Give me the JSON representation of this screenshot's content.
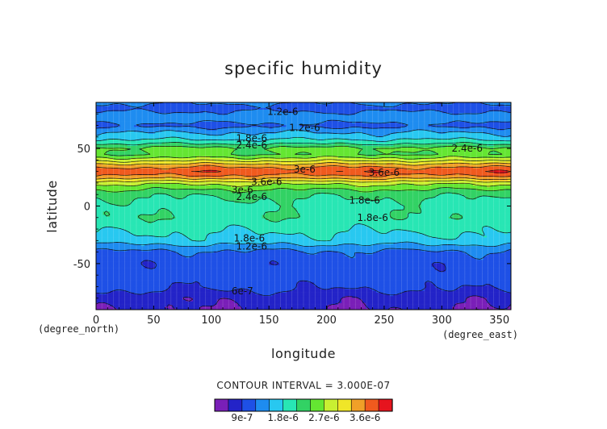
{
  "chart_data": {
    "type": "heatmap",
    "title": "specific humidity",
    "xlabel": "longitude",
    "ylabel": "latitude",
    "x_unit_label": "(degree_east)",
    "y_unit_label": "(degree_north)",
    "xlim": [
      0,
      360
    ],
    "ylim": [
      -90,
      90
    ],
    "x_ticks": [
      0,
      50,
      100,
      150,
      200,
      250,
      300,
      350
    ],
    "y_ticks": [
      -50,
      0,
      50
    ],
    "contour_interval_text": "CONTOUR INTERVAL = 3.000E-07",
    "levels": [
      6e-07,
      9e-07,
      1.2e-06,
      1.5e-06,
      1.8e-06,
      2.1e-06,
      2.4e-06,
      2.7e-06,
      3e-06,
      3.3e-06,
      3.6e-06,
      3.9e-06
    ],
    "colors": [
      "#7a1fb8",
      "#2323c8",
      "#1e50e6",
      "#1e8cf0",
      "#28c8f0",
      "#28e6b4",
      "#32d264",
      "#64e632",
      "#c8f032",
      "#f0e628",
      "#f0a028",
      "#f05a1e",
      "#e6141e"
    ],
    "colorbar_labels": [
      {
        "value": 9e-07,
        "text": "9e-7"
      },
      {
        "value": 1.8e-06,
        "text": "1.8e-6"
      },
      {
        "value": 2.7e-06,
        "text": "2.7e-6"
      },
      {
        "value": 3.6e-06,
        "text": "3.6e-6"
      }
    ],
    "zonal_profile": [
      {
        "lat": -90,
        "q": 6.2e-07
      },
      {
        "lat": -80,
        "q": 6.8e-07
      },
      {
        "lat": -75,
        "q": 8.5e-07
      },
      {
        "lat": -70,
        "q": 9.6e-07
      },
      {
        "lat": -60,
        "q": 1.05e-06
      },
      {
        "lat": -50,
        "q": 1e-06
      },
      {
        "lat": -40,
        "q": 1.15e-06
      },
      {
        "lat": -35,
        "q": 1.4e-06
      },
      {
        "lat": -30,
        "q": 1.7e-06
      },
      {
        "lat": -20,
        "q": 1.85e-06
      },
      {
        "lat": -10,
        "q": 2.05e-06
      },
      {
        "lat": 0,
        "q": 2e-06
      },
      {
        "lat": 10,
        "q": 2.15e-06
      },
      {
        "lat": 15,
        "q": 2.45e-06
      },
      {
        "lat": 20,
        "q": 2.8e-06
      },
      {
        "lat": 25,
        "q": 3.45e-06
      },
      {
        "lat": 30,
        "q": 3.85e-06
      },
      {
        "lat": 35,
        "q": 3.5e-06
      },
      {
        "lat": 40,
        "q": 2.9e-06
      },
      {
        "lat": 45,
        "q": 2.4e-06
      },
      {
        "lat": 50,
        "q": 2.5e-06
      },
      {
        "lat": 55,
        "q": 2e-06
      },
      {
        "lat": 60,
        "q": 1.65e-06
      },
      {
        "lat": 65,
        "q": 1.45e-06
      },
      {
        "lat": 70,
        "q": 1.1e-06
      },
      {
        "lat": 75,
        "q": 1.35e-06
      },
      {
        "lat": 80,
        "q": 1.3e-06
      },
      {
        "lat": 85,
        "q": 1.05e-06
      },
      {
        "lat": 90,
        "q": 1.25e-06
      }
    ],
    "contour_labels": [
      {
        "lon": 162,
        "lat": 82,
        "text": "1.2e-6"
      },
      {
        "lon": 181,
        "lat": 68,
        "text": "1.2e-6"
      },
      {
        "lon": 135,
        "lat": 59,
        "text": "1.8e-6"
      },
      {
        "lon": 135,
        "lat": 53,
        "text": "2.4e-6"
      },
      {
        "lon": 322,
        "lat": 50,
        "text": "2.4e-6"
      },
      {
        "lon": 181,
        "lat": 32,
        "text": "3e-6"
      },
      {
        "lon": 250,
        "lat": 29,
        "text": "3.6e-6"
      },
      {
        "lon": 148,
        "lat": 21,
        "text": "3.6e-6"
      },
      {
        "lon": 127,
        "lat": 14,
        "text": "3e-6"
      },
      {
        "lon": 135,
        "lat": 8,
        "text": "2.4e-6"
      },
      {
        "lon": 233,
        "lat": 5,
        "text": "1.8e-6"
      },
      {
        "lon": 240,
        "lat": -10,
        "text": "1.8e-6"
      },
      {
        "lon": 133,
        "lat": -28,
        "text": "1.8e-6"
      },
      {
        "lon": 135,
        "lat": -35,
        "text": "1.2e-6"
      },
      {
        "lon": 127,
        "lat": -74,
        "text": "6e-7"
      }
    ]
  }
}
